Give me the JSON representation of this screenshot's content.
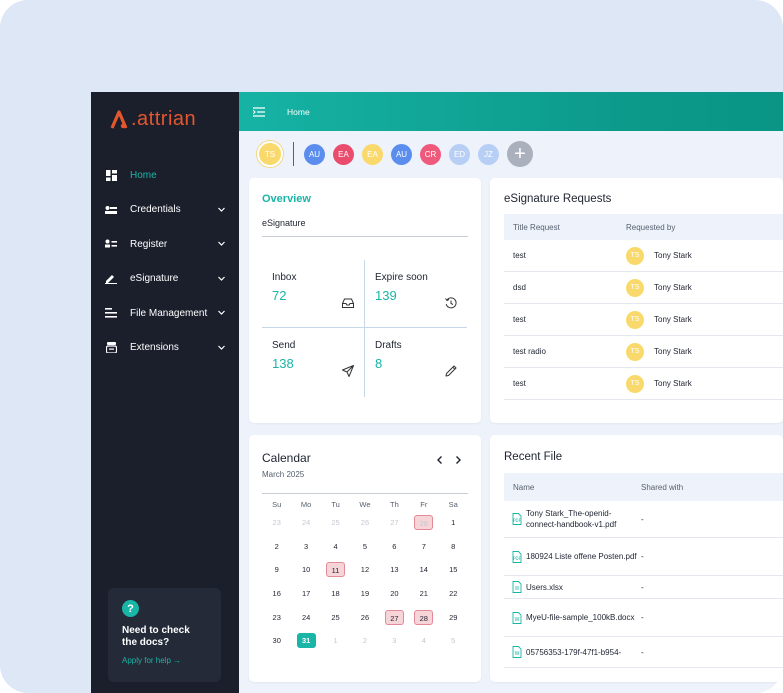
{
  "brand": {
    "mark": "A",
    "name": ".attrian"
  },
  "sidebar": {
    "items": [
      {
        "label": "Home",
        "icon": "dashboard-icon",
        "active": true
      },
      {
        "label": "Credentials",
        "icon": "credential-card-icon"
      },
      {
        "label": "Register",
        "icon": "register-icon"
      },
      {
        "label": "eSignature",
        "icon": "pen-icon"
      },
      {
        "label": "File Management",
        "icon": "file-stack-icon"
      },
      {
        "label": "Extensions",
        "icon": "extensions-icon"
      }
    ],
    "help": {
      "icon": "?",
      "title": "Need to check the docs?",
      "link": "Apply for help"
    }
  },
  "topbar": {
    "breadcrumb": "Home"
  },
  "avatars": {
    "current": {
      "initials": "TS",
      "color": "#f9d96b"
    },
    "others": [
      {
        "initials": "AU",
        "color": "#5b8def"
      },
      {
        "initials": "EA",
        "color": "#ea4c6e"
      },
      {
        "initials": "EA",
        "color": "#f9d96b"
      },
      {
        "initials": "AU",
        "color": "#5b8def"
      },
      {
        "initials": "CR",
        "color": "#ef5a7c"
      },
      {
        "initials": "ED",
        "color": "#b7cff5"
      },
      {
        "initials": "JZ",
        "color": "#b7cff5"
      }
    ],
    "add_label": "+"
  },
  "overview": {
    "title": "Overview",
    "subtitle": "eSignature",
    "stats": [
      {
        "label": "Inbox",
        "value": "72",
        "icon": "inbox-icon"
      },
      {
        "label": "Expire soon",
        "value": "139",
        "icon": "history-icon"
      },
      {
        "label": "Send",
        "value": "138",
        "icon": "send-icon"
      },
      {
        "label": "Drafts",
        "value": "8",
        "icon": "pencil-icon"
      }
    ]
  },
  "esignature": {
    "title": "eSignature Requests",
    "columns": [
      "Title Request",
      "Requested by"
    ],
    "rows": [
      {
        "title": "test",
        "initials": "TS",
        "by": "Tony Stark"
      },
      {
        "title": "dsd",
        "initials": "TS",
        "by": "Tony Stark"
      },
      {
        "title": "test",
        "initials": "TS",
        "by": "Tony Stark"
      },
      {
        "title": "test radio",
        "initials": "TS",
        "by": "Tony Stark"
      },
      {
        "title": "test",
        "initials": "TS",
        "by": "Tony Stark"
      }
    ]
  },
  "calendar": {
    "title": "Calendar",
    "month": "March 2025",
    "weekdays": [
      "Su",
      "Mo",
      "Tu",
      "We",
      "Th",
      "Fr",
      "Sa"
    ],
    "weeks": [
      [
        {
          "d": "23",
          "m": true
        },
        {
          "d": "24",
          "m": true
        },
        {
          "d": "25",
          "m": true
        },
        {
          "d": "26",
          "m": true
        },
        {
          "d": "27",
          "m": true
        },
        {
          "d": "28",
          "m": true,
          "mark": true
        },
        {
          "d": "1"
        }
      ],
      [
        {
          "d": "2"
        },
        {
          "d": "3"
        },
        {
          "d": "4"
        },
        {
          "d": "5"
        },
        {
          "d": "6"
        },
        {
          "d": "7"
        },
        {
          "d": "8"
        }
      ],
      [
        {
          "d": "9"
        },
        {
          "d": "10"
        },
        {
          "d": "11",
          "mark": true
        },
        {
          "d": "12"
        },
        {
          "d": "13"
        },
        {
          "d": "14"
        },
        {
          "d": "15"
        }
      ],
      [
        {
          "d": "16"
        },
        {
          "d": "17"
        },
        {
          "d": "18"
        },
        {
          "d": "19"
        },
        {
          "d": "20"
        },
        {
          "d": "21"
        },
        {
          "d": "22"
        }
      ],
      [
        {
          "d": "23"
        },
        {
          "d": "24"
        },
        {
          "d": "25"
        },
        {
          "d": "26"
        },
        {
          "d": "27",
          "mark": true
        },
        {
          "d": "28",
          "mark": true
        },
        {
          "d": "29"
        }
      ],
      [
        {
          "d": "30"
        },
        {
          "d": "31",
          "today": true
        },
        {
          "d": "1",
          "m": true
        },
        {
          "d": "2",
          "m": true
        },
        {
          "d": "3",
          "m": true
        },
        {
          "d": "4",
          "m": true
        },
        {
          "d": "5",
          "m": true
        }
      ]
    ]
  },
  "recent_files": {
    "title": "Recent File",
    "columns": [
      "Name",
      "Shared with"
    ],
    "rows": [
      {
        "name": "Tony Stark_The-openid-connect-handbook-v1.pdf",
        "shared": "-",
        "type": "pdf"
      },
      {
        "name": "180924 Liste offene Posten.pdf",
        "shared": "-",
        "type": "pdf"
      },
      {
        "name": "Users.xlsx",
        "shared": "-",
        "type": "doc"
      },
      {
        "name": "MyeU-file-sample_100kB.docx",
        "shared": "-",
        "type": "word"
      },
      {
        "name": "05756353-179f-47f1-b954-",
        "shared": "-",
        "type": "word"
      }
    ]
  }
}
